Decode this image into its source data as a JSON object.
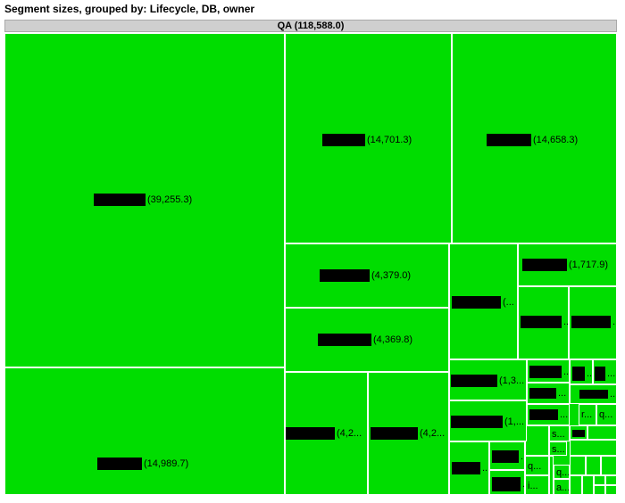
{
  "chart_data": {
    "type": "treemap",
    "title": "Segment sizes, grouped by: Lifecycle, DB, owner",
    "root": {
      "name": "QA",
      "label": "QA (118,588.0)",
      "value": 118588.0
    },
    "cell_color": "#00dd00",
    "cells": [
      {
        "id": "c1",
        "label": "(39,255.3)",
        "value": 39255.3
      },
      {
        "id": "c2",
        "label": "(14,989.7)",
        "value": 14989.7
      },
      {
        "id": "c3",
        "label": "(14,701.3)",
        "value": 14701.3
      },
      {
        "id": "c4",
        "label": "(14,658.3)",
        "value": 14658.3
      },
      {
        "id": "c5",
        "label": "(4,379.0)",
        "value": 4379.0
      },
      {
        "id": "c6",
        "label": "(4,369.8)",
        "value": 4369.8
      },
      {
        "id": "c7",
        "label": "(4,2...",
        "value": null
      },
      {
        "id": "c8",
        "label": "(4,2...",
        "value": null
      },
      {
        "id": "c9",
        "label": "(1,717.9)",
        "value": 1717.9
      },
      {
        "id": "c10",
        "label": "(...",
        "value": null
      },
      {
        "id": "c11",
        "label": "(1,3...",
        "value": null
      },
      {
        "id": "c12",
        "label": "(1,...",
        "value": null
      },
      {
        "id": "c13",
        "label": "...",
        "value": null
      },
      {
        "id": "c14",
        "label": "...",
        "value": null
      },
      {
        "id": "c15",
        "label": "...",
        "value": null
      },
      {
        "id": "c16",
        "label": "...",
        "value": null
      },
      {
        "id": "c17",
        "label": "...",
        "value": null
      },
      {
        "id": "c18",
        "label": "...",
        "value": null
      },
      {
        "id": "c19",
        "label": "...",
        "value": null
      },
      {
        "id": "c20",
        "label": "...",
        "value": null
      },
      {
        "id": "c21",
        "label": "...",
        "value": null
      },
      {
        "id": "c22",
        "label": "...",
        "value": null
      },
      {
        "id": "c23",
        "label": "...",
        "value": null
      },
      {
        "id": "c24",
        "label": "...",
        "value": null
      },
      {
        "id": "c25",
        "label": "r...",
        "value": null
      },
      {
        "id": "c26",
        "label": "q...",
        "value": null
      },
      {
        "id": "c27",
        "label": "s...",
        "value": null
      },
      {
        "id": "c28",
        "label": "q...",
        "value": null
      },
      {
        "id": "c29",
        "label": "s...",
        "value": null
      },
      {
        "id": "c30",
        "label": "q...",
        "value": null
      },
      {
        "id": "c31",
        "label": "i...",
        "value": null
      },
      {
        "id": "c32",
        "label": "a...",
        "value": null
      }
    ]
  }
}
